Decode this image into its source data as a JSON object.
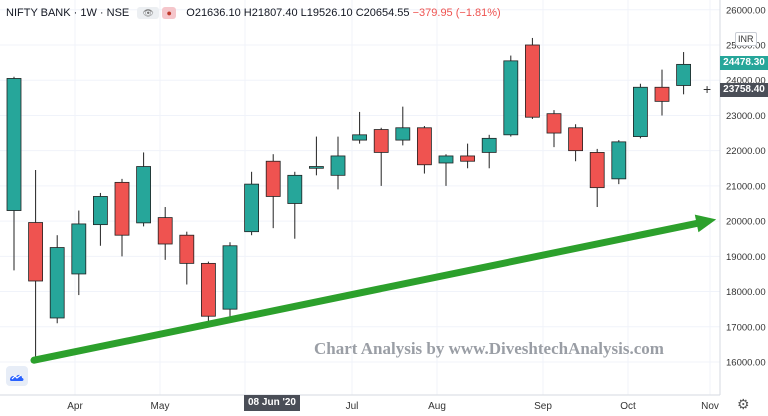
{
  "header": {
    "symbol": "NIFTY BANK · 1W · NSE",
    "eye_icon": "eye-icon",
    "dot_icon": "circle-icon",
    "open": "O21636.10",
    "high": "H21807.40",
    "low": "L19526.10",
    "close": "C20654.55",
    "change": "−379.95 (−1.81%)"
  },
  "currency_badge": "INR",
  "price_labels": {
    "last": "24478.30",
    "crosshair": "23758.40"
  },
  "date_label": "08 Jun '20",
  "watermark": "Chart Analysis by www.DiveshtechAnalysis.com",
  "colors": {
    "up": "#26a69a",
    "down": "#ef5350",
    "arrow": "#2ca02c",
    "neg_text": "#ef5350"
  },
  "chart_data": {
    "type": "candlestick",
    "y_ticks": [
      16000,
      17000,
      18000,
      19000,
      20000,
      21000,
      22000,
      23000,
      24000,
      25000,
      26000
    ],
    "y_tick_labels": [
      "16000.00",
      "17000.00",
      "18000.00",
      "19000.00",
      "20000.00",
      "21000.00",
      "22000.00",
      "23000.00",
      "24000.00",
      "25000.00",
      "26000.00"
    ],
    "x_labels": [
      "Apr",
      "May",
      "",
      "Jul",
      "Aug",
      "Sep",
      "Oct",
      "Nov"
    ],
    "ylim": [
      15500,
      26200
    ],
    "candles": [
      {
        "o": 20300,
        "h": 24100,
        "l": 18600,
        "c": 24050
      },
      {
        "o": 19960,
        "h": 21450,
        "l": 16100,
        "c": 18300
      },
      {
        "o": 17250,
        "h": 19600,
        "l": 17100,
        "c": 19250
      },
      {
        "o": 18500,
        "h": 20300,
        "l": 17900,
        "c": 19920
      },
      {
        "o": 19900,
        "h": 20800,
        "l": 19300,
        "c": 20700
      },
      {
        "o": 21100,
        "h": 21200,
        "l": 19000,
        "c": 19600
      },
      {
        "o": 19950,
        "h": 21950,
        "l": 19850,
        "c": 21550
      },
      {
        "o": 20100,
        "h": 20400,
        "l": 18900,
        "c": 19350
      },
      {
        "o": 19600,
        "h": 19700,
        "l": 18200,
        "c": 18800
      },
      {
        "o": 18800,
        "h": 18850,
        "l": 17000,
        "c": 17300
      },
      {
        "o": 17500,
        "h": 19400,
        "l": 17200,
        "c": 19300
      },
      {
        "o": 19700,
        "h": 21400,
        "l": 19600,
        "c": 21050
      },
      {
        "o": 21700,
        "h": 21900,
        "l": 19800,
        "c": 20700
      },
      {
        "o": 20500,
        "h": 21400,
        "l": 19500,
        "c": 21300
      },
      {
        "o": 21500,
        "h": 22400,
        "l": 21300,
        "c": 21550
      },
      {
        "o": 21300,
        "h": 22400,
        "l": 20900,
        "c": 21850
      },
      {
        "o": 22300,
        "h": 23100,
        "l": 22200,
        "c": 22450
      },
      {
        "o": 22600,
        "h": 22650,
        "l": 21000,
        "c": 21950
      },
      {
        "o": 22300,
        "h": 23250,
        "l": 22150,
        "c": 22650
      },
      {
        "o": 22650,
        "h": 22700,
        "l": 21350,
        "c": 21600
      },
      {
        "o": 21650,
        "h": 21900,
        "l": 21000,
        "c": 21850
      },
      {
        "o": 21850,
        "h": 22200,
        "l": 21500,
        "c": 21700
      },
      {
        "o": 21950,
        "h": 22450,
        "l": 21500,
        "c": 22350
      },
      {
        "o": 22450,
        "h": 24700,
        "l": 22400,
        "c": 24550
      },
      {
        "o": 25000,
        "h": 25200,
        "l": 22900,
        "c": 22950
      },
      {
        "o": 23050,
        "h": 23150,
        "l": 22100,
        "c": 22500
      },
      {
        "o": 22650,
        "h": 22750,
        "l": 21700,
        "c": 22000
      },
      {
        "o": 21950,
        "h": 22050,
        "l": 20400,
        "c": 20950
      },
      {
        "o": 21200,
        "h": 22300,
        "l": 21050,
        "c": 22250
      },
      {
        "o": 22400,
        "h": 23900,
        "l": 22350,
        "c": 23800
      },
      {
        "o": 23800,
        "h": 24300,
        "l": 23000,
        "c": 23400
      },
      {
        "o": 23850,
        "h": 24800,
        "l": 23600,
        "c": 24450
      }
    ],
    "trendline": {
      "start_candle": 0.85,
      "start_price": 16050,
      "end_candle": 32.8,
      "end_price": 20050
    }
  }
}
